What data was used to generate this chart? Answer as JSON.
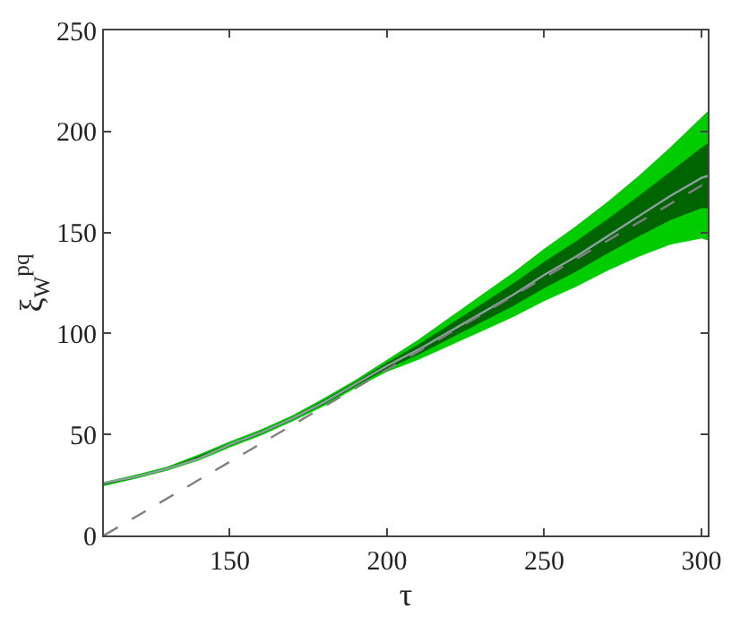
{
  "chart_data": {
    "type": "line",
    "xlabel": "τ",
    "ylabel": "ξ$_{W}$$^{pq}$",
    "xlim": [
      110,
      302
    ],
    "xticks": [
      150,
      200,
      250,
      300
    ],
    "ylim": [
      0,
      250
    ],
    "yticks": [
      0,
      50,
      100,
      150,
      200,
      250
    ],
    "x": [
      110,
      120,
      130,
      140,
      150,
      160,
      170,
      180,
      190,
      200,
      210,
      220,
      230,
      240,
      250,
      260,
      270,
      280,
      290,
      300,
      302
    ],
    "series": [
      {
        "color": "#00cc00",
        "values": [
          null,
          null,
          null,
          null,
          null,
          null,
          null,
          null,
          null,
          null,
          null,
          null,
          null,
          null,
          null,
          null,
          null,
          null,
          null,
          null,
          null
        ],
        "lower": [
          24.5,
          28,
          32,
          37,
          43.5,
          49.5,
          56.5,
          64,
          73,
          81,
          87,
          94,
          101,
          108,
          116,
          123,
          131,
          138,
          144,
          147,
          146
        ],
        "upper": [
          26.5,
          30,
          34,
          40,
          46.5,
          52.5,
          59.5,
          68,
          77,
          87,
          97,
          108,
          119,
          130,
          142,
          153,
          165,
          178,
          192,
          207,
          210
        ]
      },
      {
        "color": "#006400",
        "values": [
          null,
          null,
          null,
          null,
          null,
          null,
          null,
          null,
          null,
          null,
          null,
          null,
          null,
          null,
          null,
          null,
          null,
          null,
          null,
          null,
          null
        ],
        "lower": [
          25,
          28.5,
          32.5,
          37.8,
          44.3,
          50.3,
          57.3,
          65,
          74,
          82.5,
          89.5,
          97.5,
          105.5,
          113.5,
          122.5,
          130.5,
          139.5,
          148,
          156,
          162,
          162
        ],
        "upper": [
          26,
          29.5,
          33.5,
          39.2,
          45.7,
          51.7,
          58.7,
          67,
          76,
          85.5,
          94.5,
          104.5,
          114.5,
          124.5,
          135.5,
          145.5,
          156.5,
          168,
          180,
          192,
          194
        ]
      },
      {
        "color": "#8ca0a0",
        "values": [
          26,
          29,
          33,
          38,
          45,
          51,
          58,
          66,
          75,
          84,
          92,
          101,
          110,
          119,
          129,
          138,
          148,
          158,
          168,
          177,
          178
        ]
      },
      {
        "type": "line",
        "color": "#808080",
        "line_style": "dashed",
        "x": [
          110,
          302
        ],
        "values": [
          0,
          175
        ]
      }
    ]
  }
}
